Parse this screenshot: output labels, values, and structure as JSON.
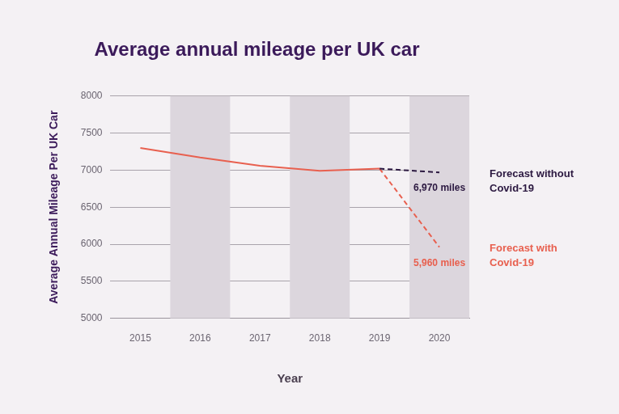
{
  "chart_data": {
    "type": "line",
    "title": "Average annual mileage per UK car",
    "x_label": "Year",
    "y_label": "Average Annual Mileage Per UK Car",
    "categories": [
      "2015",
      "2016",
      "2017",
      "2018",
      "2019",
      "2020"
    ],
    "series": [
      {
        "color": "#e8604f",
        "line_style": "solid",
        "values": [
          7300,
          7170,
          7060,
          6990,
          7020,
          null
        ]
      },
      {
        "name": "Forecast without Covid-19",
        "color": "#2b1840",
        "line_style": "dashed",
        "values": [
          null,
          null,
          null,
          null,
          7020,
          6970
        ],
        "value_labels": [
          null,
          null,
          null,
          null,
          null,
          "6,970 miles"
        ]
      },
      {
        "name": "Forecast with Covid-19",
        "color": "#e8604f",
        "line_style": "dashed",
        "values": [
          null,
          null,
          null,
          null,
          7020,
          5960
        ],
        "value_labels": [
          null,
          null,
          null,
          null,
          null,
          "5,960 miles"
        ]
      }
    ],
    "ylim": [
      5000,
      8000
    ],
    "yticks": [
      5000,
      5500,
      6000,
      6500,
      7000,
      7500,
      8000
    ],
    "grid": true,
    "legend": "right"
  }
}
